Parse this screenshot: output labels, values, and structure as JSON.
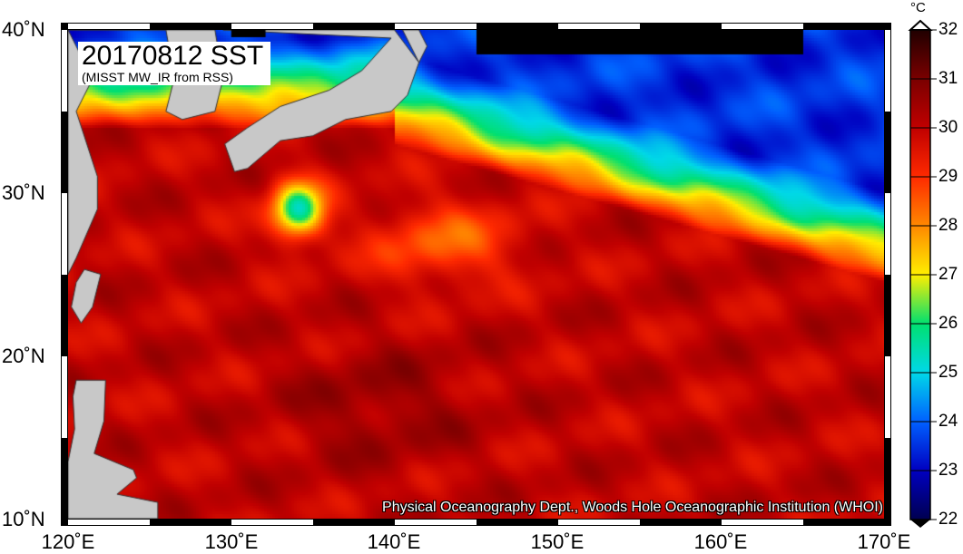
{
  "title": "20170812 SST",
  "subtitle": "(MISST MW_IR from RSS)",
  "credit": "Physical Oceanography Dept., Woods Hole Oceanographic Institution (WHOI)",
  "colorbar": {
    "unit": "°C",
    "min": 22,
    "max": 32,
    "ticks": [
      "32",
      "31",
      "30",
      "29",
      "28",
      "27",
      "26",
      "25",
      "24",
      "23",
      "22"
    ],
    "colors": [
      "#200000",
      "#7a0000",
      "#c00000",
      "#ff2a00",
      "#ff8800",
      "#ffee00",
      "#00e070",
      "#00d8e8",
      "#0060ff",
      "#0000c0",
      "#000050"
    ]
  },
  "chart_data": {
    "type": "heatmap",
    "variable": "SST",
    "date": "20170812",
    "lon_range": [
      120,
      170
    ],
    "lat_range": [
      10,
      40
    ],
    "lat_ticks": [
      "40˚N",
      "30˚N",
      "20˚N",
      "10˚N"
    ],
    "lon_ticks": [
      "120˚E",
      "130˚E",
      "140˚E",
      "150˚E",
      "160˚E",
      "170˚E"
    ],
    "land_color": "#c8c8c8"
  }
}
